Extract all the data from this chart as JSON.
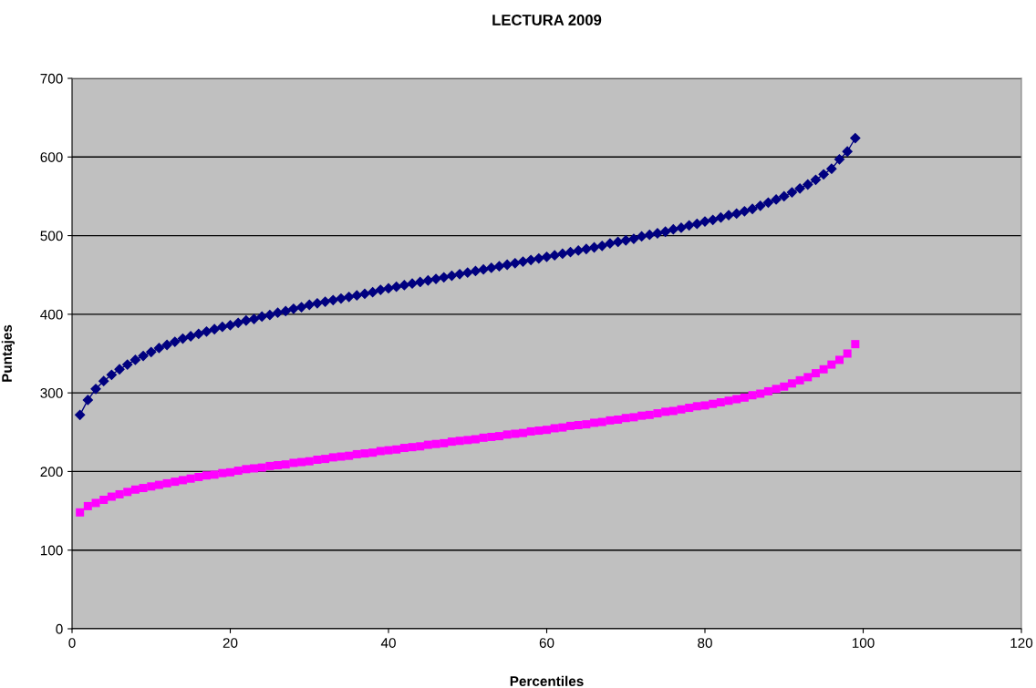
{
  "chart_data": {
    "type": "line",
    "title": "LECTURA 2009",
    "xlabel": "Percentiles",
    "ylabel": "Puntajes",
    "x": [
      1,
      2,
      3,
      4,
      5,
      6,
      7,
      8,
      9,
      10,
      11,
      12,
      13,
      14,
      15,
      16,
      17,
      18,
      19,
      20,
      21,
      22,
      23,
      24,
      25,
      26,
      27,
      28,
      29,
      30,
      31,
      32,
      33,
      34,
      35,
      36,
      37,
      38,
      39,
      40,
      41,
      42,
      43,
      44,
      45,
      46,
      47,
      48,
      49,
      50,
      51,
      52,
      53,
      54,
      55,
      56,
      57,
      58,
      59,
      60,
      61,
      62,
      63,
      64,
      65,
      66,
      67,
      68,
      69,
      70,
      71,
      72,
      73,
      74,
      75,
      76,
      77,
      78,
      79,
      80,
      81,
      82,
      83,
      84,
      85,
      86,
      87,
      88,
      89,
      90,
      91,
      92,
      93,
      94,
      95,
      96,
      97,
      98,
      99
    ],
    "series": [
      {
        "color": "#000080",
        "marker": "diamond",
        "values": [
          272,
          291,
          305,
          315,
          323,
          330,
          336,
          342,
          347,
          352,
          357,
          361,
          365,
          369,
          372,
          375,
          378,
          381,
          384,
          386,
          389,
          392,
          394,
          397,
          399,
          402,
          404,
          407,
          409,
          412,
          414,
          416,
          418,
          420,
          422,
          424,
          426,
          428,
          431,
          433,
          435,
          437,
          439,
          441,
          443,
          445,
          447,
          449,
          451,
          453,
          455,
          457,
          459,
          461,
          463,
          465,
          467,
          469,
          471,
          473,
          475,
          477,
          479,
          481,
          483,
          485,
          487,
          490,
          492,
          494,
          496,
          499,
          501,
          503,
          505,
          508,
          510,
          513,
          515,
          518,
          520,
          523,
          526,
          528,
          531,
          534,
          538,
          542,
          546,
          550,
          555,
          560,
          565,
          571,
          578,
          585,
          597,
          607,
          624
        ]
      },
      {
        "color": "#ff00ff",
        "marker": "square",
        "type": "scatter",
        "values": [
          148,
          156,
          160,
          164,
          168,
          171,
          174,
          177,
          179,
          181,
          183,
          185,
          187,
          189,
          191,
          193,
          195,
          196,
          198,
          199,
          201,
          203,
          204,
          205,
          207,
          208,
          209,
          211,
          212,
          213,
          215,
          216,
          218,
          219,
          220,
          222,
          223,
          224,
          226,
          227,
          228,
          230,
          231,
          232,
          234,
          235,
          236,
          238,
          239,
          240,
          241,
          243,
          244,
          245,
          247,
          248,
          249,
          251,
          252,
          253,
          255,
          256,
          258,
          259,
          260,
          262,
          263,
          265,
          266,
          268,
          269,
          271,
          272,
          274,
          276,
          277,
          279,
          281,
          283,
          284,
          286,
          288,
          290,
          292,
          294,
          297,
          299,
          302,
          305,
          308,
          312,
          316,
          320,
          325,
          330,
          336,
          342,
          350,
          362
        ]
      }
    ],
    "xlim": [
      0,
      120
    ],
    "xticks": [
      0,
      20,
      40,
      60,
      80,
      100,
      120
    ],
    "ylim": [
      0,
      700
    ],
    "yticks": [
      0,
      100,
      200,
      300,
      400,
      500,
      600,
      700
    ],
    "grid": "y",
    "line_style": "solid",
    "legend": false
  }
}
